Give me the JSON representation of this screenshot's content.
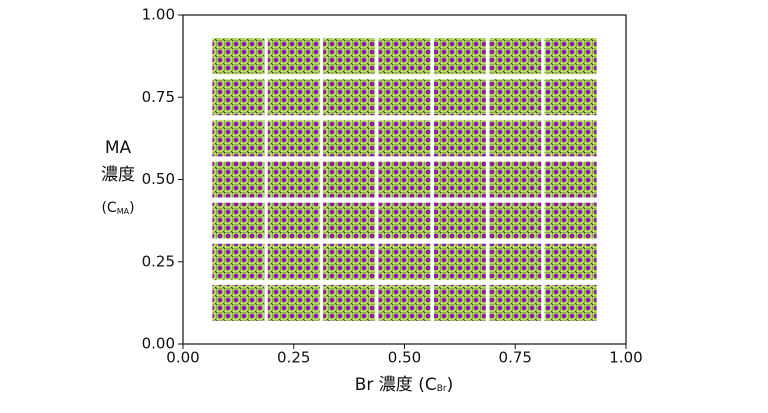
{
  "chart_data": {
    "type": "scatter",
    "x": [
      0.125,
      0.25,
      0.375,
      0.5,
      0.625,
      0.75,
      0.875,
      0.125,
      0.25,
      0.375,
      0.5,
      0.625,
      0.75,
      0.875,
      0.125,
      0.25,
      0.375,
      0.5,
      0.625,
      0.75,
      0.875,
      0.125,
      0.25,
      0.375,
      0.5,
      0.625,
      0.75,
      0.875,
      0.125,
      0.25,
      0.375,
      0.5,
      0.625,
      0.75,
      0.875,
      0.125,
      0.25,
      0.375,
      0.5,
      0.625,
      0.75,
      0.875,
      0.125,
      0.25,
      0.375,
      0.5,
      0.625,
      0.75,
      0.875
    ],
    "y": [
      0.875,
      0.875,
      0.875,
      0.875,
      0.875,
      0.875,
      0.875,
      0.75,
      0.75,
      0.75,
      0.75,
      0.75,
      0.75,
      0.75,
      0.625,
      0.625,
      0.625,
      0.625,
      0.625,
      0.625,
      0.625,
      0.5,
      0.5,
      0.5,
      0.5,
      0.5,
      0.5,
      0.5,
      0.375,
      0.375,
      0.375,
      0.375,
      0.375,
      0.375,
      0.375,
      0.25,
      0.25,
      0.25,
      0.25,
      0.25,
      0.25,
      0.25,
      0.125,
      0.125,
      0.125,
      0.125,
      0.125,
      0.125,
      0.125
    ],
    "xlim": [
      0,
      1
    ],
    "ylim": [
      0,
      1
    ],
    "xticks": [
      {
        "value": 0,
        "label": "0.00"
      },
      {
        "value": 0.25,
        "label": "0.25"
      },
      {
        "value": 0.5,
        "label": "0.50"
      },
      {
        "value": 0.75,
        "label": "0.75"
      },
      {
        "value": 1,
        "label": "1.00"
      }
    ],
    "yticks": [
      {
        "value": 0,
        "label": "0.00"
      },
      {
        "value": 0.25,
        "label": "0.25"
      },
      {
        "value": 0.5,
        "label": "0.50"
      },
      {
        "value": 0.75,
        "label": "0.75"
      },
      {
        "value": 1,
        "label": "1.00"
      }
    ],
    "xlabel": {
      "text": "Br 濃度 (C",
      "sub": "Br",
      "close": ")"
    },
    "ylabel": {
      "lines": [
        "MA",
        "濃度"
      ],
      "prefix": "(C",
      "sub": "MA",
      "close": ")"
    }
  }
}
